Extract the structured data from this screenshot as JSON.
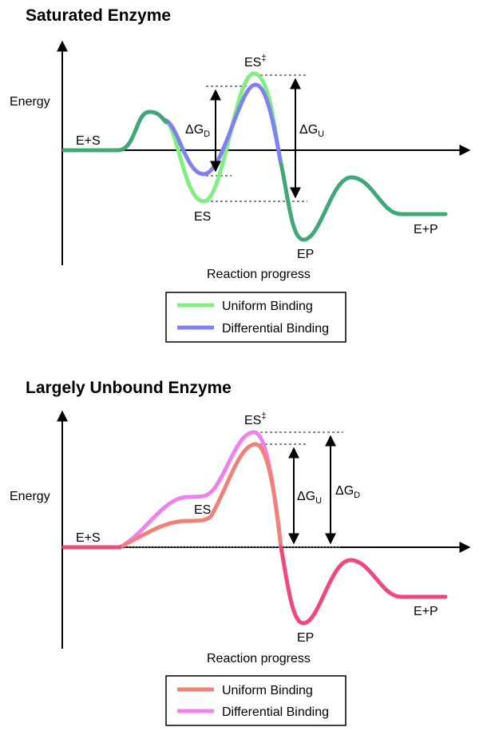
{
  "panels": [
    {
      "title": "Saturated Enzyme",
      "y_axis_label": "Energy",
      "x_axis_label": "Reaction progress",
      "state_labels": {
        "start": "E+S",
        "bound": "ES",
        "transition": "ES",
        "transition_sup": "‡",
        "product_bound": "EP",
        "end": "E+P"
      },
      "gap_labels": [
        {
          "prefix": "ΔG",
          "sub": "D"
        },
        {
          "prefix": "ΔG",
          "sub": "U"
        }
      ],
      "legend": [
        {
          "label": "Uniform Binding",
          "color": "#80ee80"
        },
        {
          "label": "Differential Binding",
          "color": "#8080ee"
        }
      ],
      "curve_colors": {
        "uniform": "#80ee80",
        "differential": "#8080ee",
        "shared": "#40a878"
      }
    },
    {
      "title": "Largely Unbound Enzyme",
      "y_axis_label": "Energy",
      "x_axis_label": "Reaction progress",
      "state_labels": {
        "start": "E+S",
        "bound": "ES",
        "transition": "ES",
        "transition_sup": "‡",
        "product_bound": "EP",
        "end": "E+P"
      },
      "gap_labels": [
        {
          "prefix": "ΔG",
          "sub": "U"
        },
        {
          "prefix": "ΔG",
          "sub": "D"
        }
      ],
      "legend": [
        {
          "label": "Uniform Binding",
          "color": "#f08078"
        },
        {
          "label": "Differential Binding",
          "color": "#f080f0"
        }
      ],
      "curve_colors": {
        "uniform": "#f08078",
        "differential": "#f080f0",
        "shared": "#f04878"
      }
    }
  ]
}
